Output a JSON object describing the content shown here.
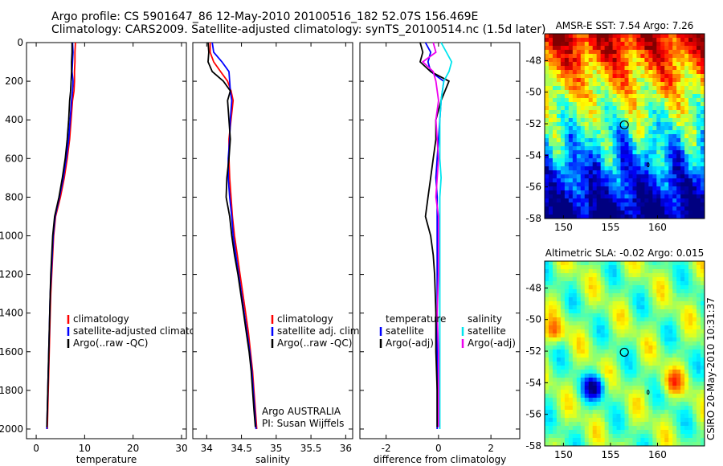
{
  "header": {
    "line1": "Argo profile: CS 5901647_86 12-May-2010 20100516_182 52.07S 156.469E",
    "line2": "Climatology: CARS2009. Satellite-adjusted climatology: synTS_20100514.nc (1.5d later)"
  },
  "side_text": "CSIRO 20-May-2010 10:31:37",
  "colors": {
    "climatology": "#ff0000",
    "satellite": "#0000ff",
    "argo": "#000000",
    "sat_salinity": "#00e5ee",
    "argo_salinity": "#ee00ee"
  },
  "chart_data": [
    {
      "id": "temperature",
      "type": "line",
      "xlabel": "temperature",
      "ylabel": "",
      "xlim": [
        -2,
        31
      ],
      "ylim": [
        2050,
        0
      ],
      "xticks": [
        0,
        10,
        20,
        30
      ],
      "yticks": [
        0,
        200,
        400,
        600,
        800,
        1000,
        1200,
        1400,
        1600,
        1800,
        2000
      ],
      "legend": [
        "climatology",
        "satellite-adjusted climatology",
        "Argo(..raw -QC)"
      ],
      "series": [
        {
          "name": "climatology",
          "color": "#ff0000",
          "points": [
            [
              8.1,
              0
            ],
            [
              8.0,
              50
            ],
            [
              8.0,
              100
            ],
            [
              7.9,
              150
            ],
            [
              7.9,
              200
            ],
            [
              7.8,
              250
            ],
            [
              7.5,
              300
            ],
            [
              7.2,
              400
            ],
            [
              6.9,
              500
            ],
            [
              6.4,
              600
            ],
            [
              5.8,
              700
            ],
            [
              5.0,
              800
            ],
            [
              4.0,
              900
            ],
            [
              3.6,
              1000
            ],
            [
              3.4,
              1100
            ],
            [
              3.2,
              1200
            ],
            [
              3.0,
              1300
            ],
            [
              2.9,
              1400
            ],
            [
              2.8,
              1500
            ],
            [
              2.7,
              1600
            ],
            [
              2.6,
              1700
            ],
            [
              2.5,
              1800
            ],
            [
              2.4,
              1900
            ],
            [
              2.3,
              2000
            ]
          ]
        },
        {
          "name": "satellite-adjusted climatology",
          "color": "#0000ff",
          "points": [
            [
              7.5,
              0
            ],
            [
              7.6,
              50
            ],
            [
              7.5,
              100
            ],
            [
              7.4,
              150
            ],
            [
              7.6,
              200
            ],
            [
              7.5,
              250
            ],
            [
              7.3,
              300
            ],
            [
              7.0,
              400
            ],
            [
              6.7,
              500
            ],
            [
              6.2,
              600
            ],
            [
              5.6,
              700
            ],
            [
              4.8,
              800
            ],
            [
              3.9,
              900
            ],
            [
              3.5,
              1000
            ],
            [
              3.3,
              1100
            ],
            [
              3.1,
              1200
            ],
            [
              2.9,
              1300
            ],
            [
              2.8,
              1400
            ],
            [
              2.7,
              1500
            ],
            [
              2.6,
              1600
            ],
            [
              2.5,
              1700
            ],
            [
              2.4,
              1800
            ],
            [
              2.3,
              1900
            ],
            [
              2.2,
              2000
            ]
          ]
        },
        {
          "name": "Argo(..raw -QC)",
          "color": "#000000",
          "points": [
            [
              7.4,
              0
            ],
            [
              7.4,
              50
            ],
            [
              7.3,
              100
            ],
            [
              7.3,
              150
            ],
            [
              7.2,
              200
            ],
            [
              7.1,
              250
            ],
            [
              6.9,
              300
            ],
            [
              6.7,
              400
            ],
            [
              6.4,
              500
            ],
            [
              6.0,
              600
            ],
            [
              5.4,
              700
            ],
            [
              4.7,
              800
            ],
            [
              3.8,
              900
            ],
            [
              3.4,
              1000
            ],
            [
              3.2,
              1100
            ],
            [
              3.0,
              1200
            ],
            [
              2.9,
              1300
            ],
            [
              2.8,
              1400
            ],
            [
              2.7,
              1500
            ],
            [
              2.6,
              1600
            ],
            [
              2.5,
              1700
            ],
            [
              2.4,
              1800
            ],
            [
              2.3,
              1900
            ],
            [
              2.2,
              1990
            ]
          ]
        }
      ]
    },
    {
      "id": "salinity",
      "type": "line",
      "xlabel": "salinity",
      "ylabel": "",
      "xlim": [
        33.8,
        36.1
      ],
      "ylim": [
        2050,
        0
      ],
      "xticks": [
        34,
        34.5,
        35,
        35.5,
        36
      ],
      "legend": [
        "climatology",
        "satellite adj. clim.",
        "Argo(..raw -QC)"
      ],
      "annotations": [
        "Argo AUSTRALIA",
        "PI: Susan Wijffels"
      ],
      "series": [
        {
          "name": "climatology",
          "color": "#ff0000",
          "points": [
            [
              34.05,
              0
            ],
            [
              34.05,
              50
            ],
            [
              34.1,
              100
            ],
            [
              34.2,
              150
            ],
            [
              34.3,
              200
            ],
            [
              34.35,
              250
            ],
            [
              34.38,
              300
            ],
            [
              34.35,
              400
            ],
            [
              34.32,
              500
            ],
            [
              34.32,
              600
            ],
            [
              34.33,
              700
            ],
            [
              34.35,
              800
            ],
            [
              34.37,
              900
            ],
            [
              34.4,
              1000
            ],
            [
              34.44,
              1100
            ],
            [
              34.48,
              1200
            ],
            [
              34.52,
              1300
            ],
            [
              34.56,
              1400
            ],
            [
              34.6,
              1500
            ],
            [
              34.63,
              1600
            ],
            [
              34.66,
              1700
            ],
            [
              34.68,
              1800
            ],
            [
              34.7,
              1900
            ],
            [
              34.72,
              2000
            ]
          ]
        },
        {
          "name": "satellite adj. clim.",
          "color": "#0000ff",
          "points": [
            [
              34.08,
              0
            ],
            [
              34.1,
              50
            ],
            [
              34.22,
              100
            ],
            [
              34.32,
              150
            ],
            [
              34.33,
              200
            ],
            [
              34.34,
              250
            ],
            [
              34.36,
              300
            ],
            [
              34.34,
              400
            ],
            [
              34.33,
              500
            ],
            [
              34.31,
              600
            ],
            [
              34.31,
              700
            ],
            [
              34.33,
              800
            ],
            [
              34.36,
              900
            ],
            [
              34.38,
              1000
            ],
            [
              34.42,
              1100
            ],
            [
              34.46,
              1200
            ],
            [
              34.5,
              1300
            ],
            [
              34.54,
              1400
            ],
            [
              34.58,
              1500
            ],
            [
              34.62,
              1600
            ],
            [
              34.65,
              1700
            ],
            [
              34.67,
              1800
            ],
            [
              34.69,
              1900
            ],
            [
              34.71,
              2000
            ]
          ]
        },
        {
          "name": "Argo(..raw -QC)",
          "color": "#000000",
          "points": [
            [
              34.02,
              0
            ],
            [
              34.03,
              50
            ],
            [
              34.02,
              100
            ],
            [
              34.08,
              150
            ],
            [
              34.24,
              200
            ],
            [
              34.34,
              250
            ],
            [
              34.3,
              300
            ],
            [
              34.32,
              400
            ],
            [
              34.34,
              500
            ],
            [
              34.32,
              600
            ],
            [
              34.29,
              700
            ],
            [
              34.28,
              800
            ],
            [
              34.33,
              900
            ],
            [
              34.36,
              1000
            ],
            [
              34.4,
              1100
            ],
            [
              34.45,
              1200
            ],
            [
              34.49,
              1300
            ],
            [
              34.53,
              1400
            ],
            [
              34.57,
              1500
            ],
            [
              34.61,
              1600
            ],
            [
              34.64,
              1700
            ],
            [
              34.66,
              1800
            ],
            [
              34.68,
              1900
            ],
            [
              34.7,
              1990
            ]
          ]
        }
      ]
    },
    {
      "id": "difference",
      "type": "line",
      "xlabel": "difference from climatology",
      "ylabel": "",
      "xlim": [
        -3,
        3.1
      ],
      "ylim": [
        2050,
        0
      ],
      "xticks": [
        -2,
        0,
        2
      ],
      "legend_temperature": {
        "heading": "temperature",
        "items": [
          "satellite",
          "Argo(-adj)"
        ]
      },
      "legend_salinity": {
        "heading": "salinity",
        "items": [
          "satellite",
          "Argo(-adj)"
        ]
      },
      "series": [
        {
          "name": "temperature satellite",
          "color": "#0000ff",
          "points": [
            [
              -0.5,
              0
            ],
            [
              -0.3,
              50
            ],
            [
              -0.4,
              100
            ],
            [
              -0.3,
              150
            ],
            [
              0.2,
              200
            ],
            [
              0.1,
              300
            ],
            [
              0.05,
              400
            ],
            [
              0.0,
              500
            ],
            [
              -0.05,
              600
            ],
            [
              -0.1,
              700
            ],
            [
              -0.05,
              800
            ],
            [
              -0.05,
              900
            ],
            [
              -0.05,
              1000
            ],
            [
              -0.05,
              1200
            ],
            [
              -0.05,
              1400
            ],
            [
              -0.05,
              1600
            ],
            [
              -0.05,
              1800
            ],
            [
              -0.05,
              2000
            ]
          ]
        },
        {
          "name": "temperature Argo(-adj)",
          "color": "#000000",
          "points": [
            [
              -0.7,
              0
            ],
            [
              -0.6,
              50
            ],
            [
              -0.7,
              100
            ],
            [
              -0.3,
              150
            ],
            [
              0.4,
              200
            ],
            [
              0.1,
              300
            ],
            [
              -0.1,
              400
            ],
            [
              -0.1,
              500
            ],
            [
              -0.2,
              600
            ],
            [
              -0.3,
              700
            ],
            [
              -0.4,
              800
            ],
            [
              -0.5,
              900
            ],
            [
              -0.3,
              1000
            ],
            [
              -0.2,
              1100
            ],
            [
              -0.15,
              1200
            ],
            [
              -0.1,
              1400
            ],
            [
              -0.1,
              1600
            ],
            [
              -0.05,
              1800
            ],
            [
              -0.05,
              1990
            ]
          ]
        },
        {
          "name": "salinity satellite",
          "color": "#00e5ee",
          "points": [
            [
              0.1,
              0
            ],
            [
              0.3,
              50
            ],
            [
              0.5,
              100
            ],
            [
              0.4,
              150
            ],
            [
              0.2,
              200
            ],
            [
              0.1,
              300
            ],
            [
              0.05,
              400
            ],
            [
              0.05,
              500
            ],
            [
              0.05,
              600
            ],
            [
              0.1,
              700
            ],
            [
              0.05,
              800
            ],
            [
              0.05,
              900
            ],
            [
              0.05,
              1000
            ],
            [
              0.05,
              1200
            ],
            [
              0.05,
              1400
            ],
            [
              0.05,
              1600
            ],
            [
              0.05,
              1800
            ],
            [
              0.05,
              2000
            ]
          ]
        },
        {
          "name": "salinity Argo(-adj)",
          "color": "#ee00ee",
          "points": [
            [
              -0.2,
              0
            ],
            [
              -0.1,
              50
            ],
            [
              -0.6,
              100
            ],
            [
              -0.2,
              150
            ],
            [
              -0.1,
              200
            ],
            [
              0.0,
              300
            ],
            [
              -0.1,
              400
            ],
            [
              -0.05,
              500
            ],
            [
              0.0,
              600
            ],
            [
              -0.05,
              700
            ],
            [
              -0.1,
              800
            ],
            [
              0.0,
              900
            ],
            [
              0.0,
              1000
            ],
            [
              0.0,
              1200
            ],
            [
              -0.05,
              1400
            ],
            [
              0.0,
              1600
            ],
            [
              0.0,
              1800
            ],
            [
              0.0,
              1990
            ]
          ]
        }
      ]
    },
    {
      "id": "sst-map",
      "type": "heatmap",
      "title": "AMSR-E SST: 7.54  Argo: 7.26",
      "xlim": [
        148,
        165
      ],
      "ylim": [
        -58,
        -46.3
      ],
      "xticks": [
        150,
        155,
        160
      ],
      "yticks": [
        -48,
        -50,
        -52,
        -54,
        -56,
        -58
      ],
      "marker": {
        "lon": 156.47,
        "lat": -52.07
      },
      "colormap": "jet"
    },
    {
      "id": "sla-map",
      "type": "heatmap",
      "title": "Altimetric SLA: -0.02  Argo: 0.015",
      "xlim": [
        148,
        165
      ],
      "ylim": [
        -58,
        -46.3
      ],
      "xticks": [
        150,
        155,
        160
      ],
      "yticks": [
        -48,
        -50,
        -52,
        -54,
        -56,
        -58
      ],
      "marker": {
        "lon": 156.47,
        "lat": -52.07
      },
      "colormap": "jet"
    }
  ]
}
